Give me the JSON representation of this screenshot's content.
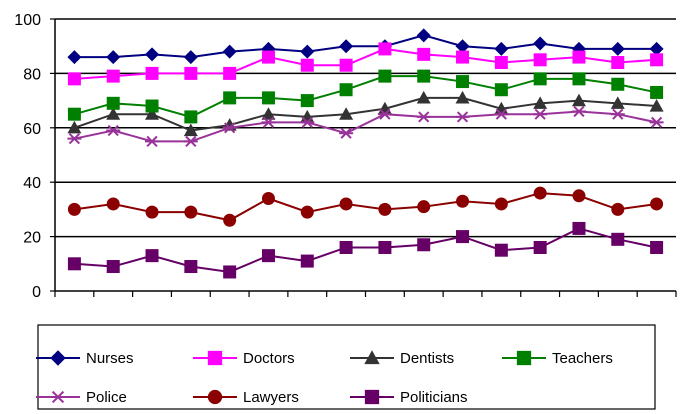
{
  "chart_data": {
    "type": "line",
    "title": "",
    "xlabel": "",
    "ylabel": "",
    "ylim": [
      0,
      100
    ],
    "yticks": [
      0,
      20,
      40,
      60,
      80,
      100
    ],
    "grid": "horizontal major gridlines",
    "legend_position": "bottom",
    "series": [
      {
        "name": "Nurses",
        "color": "#000080",
        "marker": "diamond",
        "values": [
          86,
          86,
          87,
          86,
          88,
          89,
          88,
          90,
          90,
          94,
          90,
          89,
          91,
          89,
          89,
          89
        ]
      },
      {
        "name": "Doctors",
        "color": "#FF00FF",
        "marker": "square",
        "values": [
          78,
          79,
          80,
          80,
          80,
          86,
          83,
          83,
          89,
          87,
          86,
          84,
          85,
          86,
          84,
          85
        ]
      },
      {
        "name": "Dentists",
        "color": "#333333",
        "marker": "triangle",
        "values": [
          60,
          65,
          65,
          59,
          61,
          65,
          64,
          65,
          67,
          71,
          71,
          67,
          69,
          70,
          69,
          68
        ]
      },
      {
        "name": "Teachers",
        "color": "#008000",
        "marker": "square",
        "values": [
          65,
          69,
          68,
          64,
          71,
          71,
          70,
          74,
          79,
          79,
          77,
          74,
          78,
          78,
          76,
          73
        ]
      },
      {
        "name": "Police",
        "color": "#993399",
        "marker": "star",
        "values": [
          56,
          59,
          55,
          55,
          60,
          62,
          62,
          58,
          65,
          64,
          64,
          65,
          65,
          66,
          65,
          62
        ]
      },
      {
        "name": "Lawyers",
        "color": "#8B0000",
        "marker": "circle",
        "values": [
          30,
          32,
          29,
          29,
          26,
          34,
          29,
          32,
          30,
          31,
          33,
          32,
          36,
          35,
          30,
          32
        ]
      },
      {
        "name": "Politicians",
        "color": "#660066",
        "marker": "square",
        "values": [
          10,
          9,
          13,
          9,
          7,
          13,
          11,
          16,
          16,
          17,
          20,
          15,
          16,
          23,
          19,
          16
        ]
      }
    ]
  }
}
